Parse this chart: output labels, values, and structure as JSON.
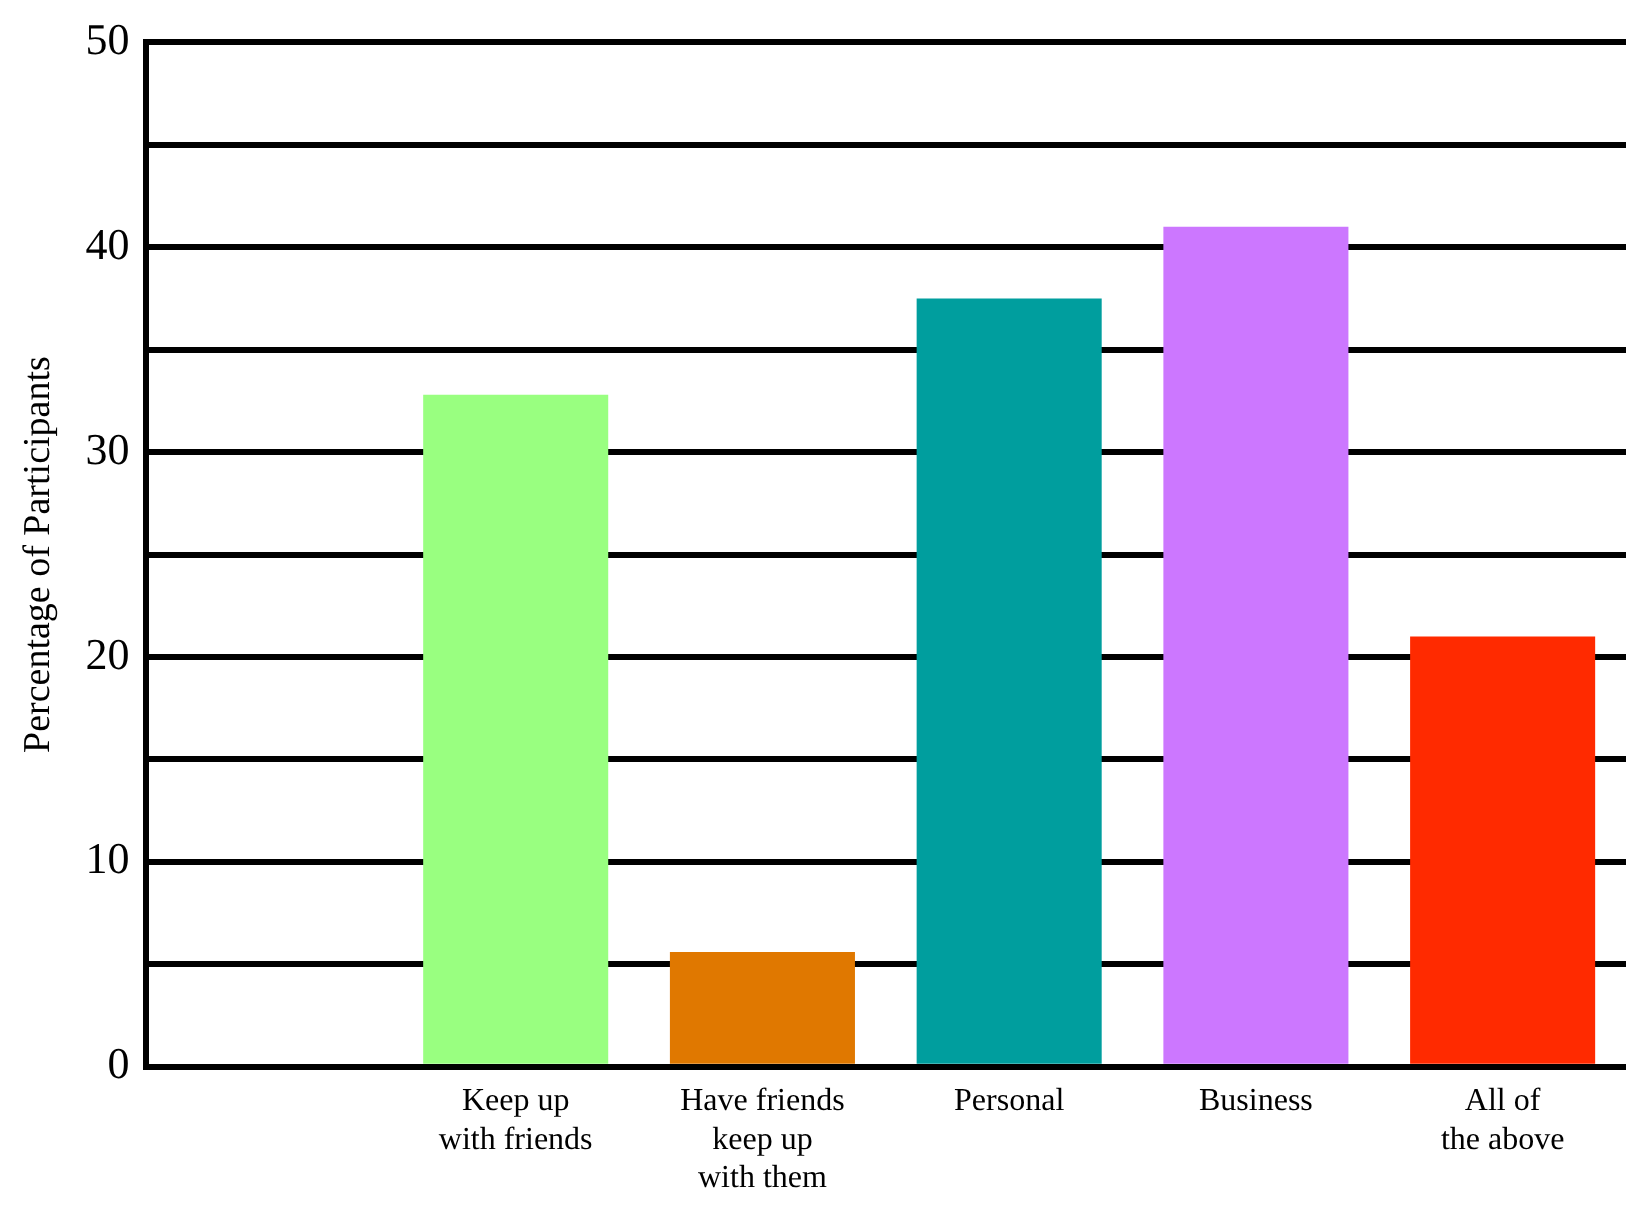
{
  "chart_data": {
    "type": "bar",
    "ylabel": "Percentage of Participants",
    "categories": [
      null,
      "Keep up\nwith friends",
      "Have friends\nkeep up\nwith them",
      "Personal",
      "Business",
      "All of\nthe above"
    ],
    "values": [
      null,
      32.8,
      5.6,
      37.5,
      41.0,
      21.0
    ],
    "colors": [
      "#000000",
      "#99ff80",
      "#e07800",
      "#009e9e",
      "#cc77ff",
      "#ff2a00"
    ],
    "ylim": [
      0,
      50
    ],
    "yticks": [
      0,
      {
        "value": 5,
        "label": null
      },
      10,
      {
        "value": 15,
        "label": null
      },
      20,
      {
        "value": 25,
        "label": null
      },
      30,
      {
        "value": 35,
        "label": null
      },
      40,
      {
        "value": 45,
        "label": null
      },
      50
    ],
    "grid": "y",
    "legend": false
  }
}
